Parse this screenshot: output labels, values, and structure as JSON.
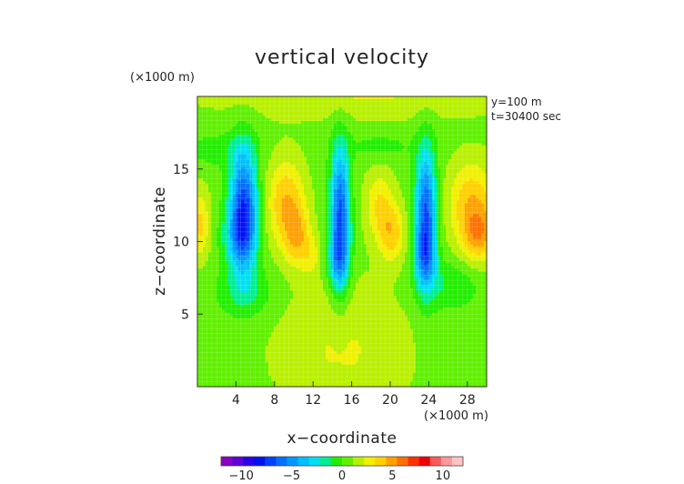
{
  "chart_data": {
    "type": "heatmap",
    "title": "vertical velocity",
    "xlabel": "x−coordinate",
    "ylabel": "z−coordinate",
    "x_unit": "(×1000 m)",
    "y_unit": "(×1000 m)",
    "annotations": [
      "y=100 m",
      "t=30400 sec"
    ],
    "xlim": [
      0,
      30
    ],
    "ylim": [
      0,
      20
    ],
    "x_ticks": [
      4,
      8,
      12,
      16,
      20,
      24,
      28
    ],
    "y_ticks": [
      5,
      10,
      15
    ],
    "grid": true,
    "colorbar": {
      "range": [
        -12,
        12
      ],
      "ticks": [
        -10,
        -5,
        0,
        5,
        10
      ],
      "tick_labels": [
        "−10",
        "−5",
        "0",
        "5",
        "10"
      ],
      "colors": [
        "#8a00c0",
        "#5f00d8",
        "#2a00e8",
        "#0010f5",
        "#0040ff",
        "#0070ff",
        "#0098ff",
        "#00c0ff",
        "#00e0f0",
        "#00ee90",
        "#22ee00",
        "#60f000",
        "#b8f000",
        "#f0f000",
        "#ffd000",
        "#ffa000",
        "#ff7000",
        "#ff3000",
        "#f00000",
        "#ff5a5a",
        "#ff9999",
        "#ffc4c4"
      ]
    },
    "field": {
      "background": 0.6,
      "layers": [
        {
          "x": 17,
          "z": 20.5,
          "sx": 12,
          "sz": 1.4,
          "w": 1.8
        },
        {
          "x": 15,
          "z": 2.5,
          "sx": 5,
          "sz": 3.5,
          "w": 1.7
        },
        {
          "x": 5,
          "z": 6.5,
          "sx": 2.2,
          "sz": 1.2,
          "w": -1.7
        },
        {
          "x": 26,
          "z": 7,
          "sx": 2.2,
          "sz": 1.2,
          "w": -1.7
        },
        {
          "x": 2,
          "z": 16.3,
          "sx": 2.5,
          "sz": 0.8,
          "w": -1.2
        },
        {
          "x": 19,
          "z": 16.6,
          "sx": 2.5,
          "sz": 0.7,
          "w": -1.0
        }
      ],
      "blobs": [
        {
          "x": 4.8,
          "z": 12.2,
          "sx": 1.0,
          "sz": 2.9,
          "w": -8.0
        },
        {
          "x": 4.2,
          "z": 10.3,
          "sx": 1.2,
          "sz": 1.4,
          "w": -2.5
        },
        {
          "x": 14.8,
          "z": 11.8,
          "sx": 0.7,
          "sz": 3.3,
          "w": -7.5
        },
        {
          "x": 14.6,
          "z": 8.6,
          "sx": 0.8,
          "sz": 1.3,
          "w": -3.0
        },
        {
          "x": 23.7,
          "z": 11.8,
          "sx": 0.75,
          "sz": 3.2,
          "w": -7.5
        },
        {
          "x": 23.5,
          "z": 9.0,
          "sx": 0.8,
          "sz": 1.3,
          "w": -3.0
        },
        {
          "x": 0.3,
          "z": 11.2,
          "sx": 0.7,
          "sz": 1.7,
          "w": 3.0
        },
        {
          "x": 9.2,
          "z": 12.6,
          "sx": 1.4,
          "sz": 2.2,
          "w": 3.8
        },
        {
          "x": 10.4,
          "z": 10.3,
          "sx": 0.9,
          "sz": 1.4,
          "w": 2.8
        },
        {
          "x": 11.8,
          "z": 9.0,
          "sx": 0.7,
          "sz": 1.0,
          "w": 1.6
        },
        {
          "x": 18.9,
          "z": 12.6,
          "sx": 1.1,
          "sz": 1.7,
          "w": 2.6
        },
        {
          "x": 20.2,
          "z": 10.5,
          "sx": 1.0,
          "sz": 1.4,
          "w": 3.0
        },
        {
          "x": 28.5,
          "z": 12.6,
          "sx": 1.8,
          "sz": 2.1,
          "w": 3.6
        },
        {
          "x": 29.2,
          "z": 10.4,
          "sx": 1.2,
          "sz": 1.3,
          "w": 3.2
        }
      ]
    }
  }
}
